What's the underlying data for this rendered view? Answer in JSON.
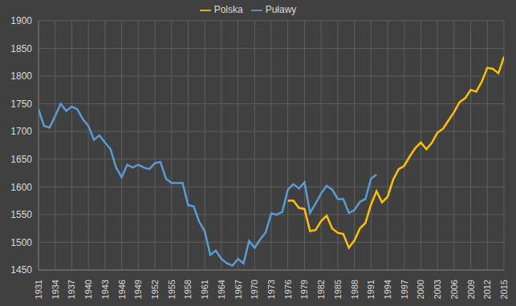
{
  "chart_data": {
    "type": "line",
    "legend": "top",
    "grid": true,
    "x": [
      1931,
      1932,
      1933,
      1934,
      1935,
      1936,
      1937,
      1938,
      1939,
      1940,
      1941,
      1942,
      1943,
      1944,
      1945,
      1946,
      1947,
      1948,
      1949,
      1950,
      1951,
      1952,
      1953,
      1954,
      1955,
      1956,
      1957,
      1958,
      1959,
      1960,
      1961,
      1962,
      1963,
      1964,
      1965,
      1966,
      1967,
      1968,
      1969,
      1970,
      1971,
      1972,
      1973,
      1974,
      1975,
      1976,
      1977,
      1978,
      1979,
      1980,
      1981,
      1982,
      1983,
      1984,
      1985,
      1986,
      1987,
      1988,
      1989,
      1990,
      1991,
      1992,
      1993,
      1994,
      1995,
      1996,
      1997,
      1998,
      1999,
      2000,
      2001,
      2002,
      2003,
      2004,
      2005,
      2006,
      2007,
      2008,
      2009,
      2010,
      2011,
      2012,
      2013,
      2014,
      2015
    ],
    "xlim": [
      1931,
      2015
    ],
    "xticks": [
      1931,
      1934,
      1937,
      1940,
      1943,
      1946,
      1949,
      1952,
      1955,
      1958,
      1961,
      1964,
      1967,
      1970,
      1973,
      1976,
      1979,
      1982,
      1985,
      1988,
      1991,
      1994,
      1997,
      2000,
      2003,
      2006,
      2009,
      2012,
      2015
    ],
    "ylim": [
      1450,
      1900
    ],
    "yticks": [
      1450,
      1500,
      1550,
      1600,
      1650,
      1700,
      1750,
      1800,
      1850,
      1900
    ],
    "series": [
      {
        "name": "Puławy",
        "color": "#5b9bd5",
        "values": [
          1740,
          1710,
          1707,
          1728,
          1750,
          1737,
          1745,
          1740,
          1722,
          1710,
          1685,
          1693,
          1680,
          1668,
          1635,
          1617,
          1640,
          1635,
          1640,
          1635,
          1632,
          1643,
          1645,
          1615,
          1607,
          1607,
          1607,
          1567,
          1565,
          1537,
          1520,
          1477,
          1485,
          1470,
          1462,
          1458,
          1470,
          1462,
          1502,
          1490,
          1505,
          1518,
          1552,
          1550,
          1555,
          1595,
          1605,
          1597,
          1608,
          1553,
          1570,
          1588,
          1602,
          1595,
          1578,
          1578,
          1553,
          1558,
          1573,
          1578,
          1615,
          1622,
          null,
          null,
          null,
          null,
          null,
          null,
          null,
          null,
          null,
          null,
          null,
          null,
          null,
          null,
          null,
          null,
          null,
          null,
          null,
          null,
          null,
          null,
          null
        ]
      },
      {
        "name": "Polska",
        "color": "#ffc000",
        "values": [
          null,
          null,
          null,
          null,
          null,
          null,
          null,
          null,
          null,
          null,
          null,
          null,
          null,
          null,
          null,
          null,
          null,
          null,
          null,
          null,
          null,
          null,
          null,
          null,
          null,
          null,
          null,
          null,
          null,
          null,
          null,
          null,
          null,
          null,
          null,
          null,
          null,
          null,
          null,
          null,
          null,
          null,
          null,
          null,
          null,
          1575,
          1575,
          1562,
          1560,
          1520,
          1522,
          1538,
          1548,
          1525,
          1517,
          1515,
          1490,
          1503,
          1525,
          1535,
          1568,
          1592,
          1572,
          1582,
          1613,
          1632,
          1638,
          1655,
          1670,
          1680,
          1668,
          1680,
          1698,
          1705,
          1720,
          1735,
          1753,
          1760,
          1775,
          1772,
          1790,
          1815,
          1813,
          1805,
          1835
        ]
      }
    ]
  }
}
